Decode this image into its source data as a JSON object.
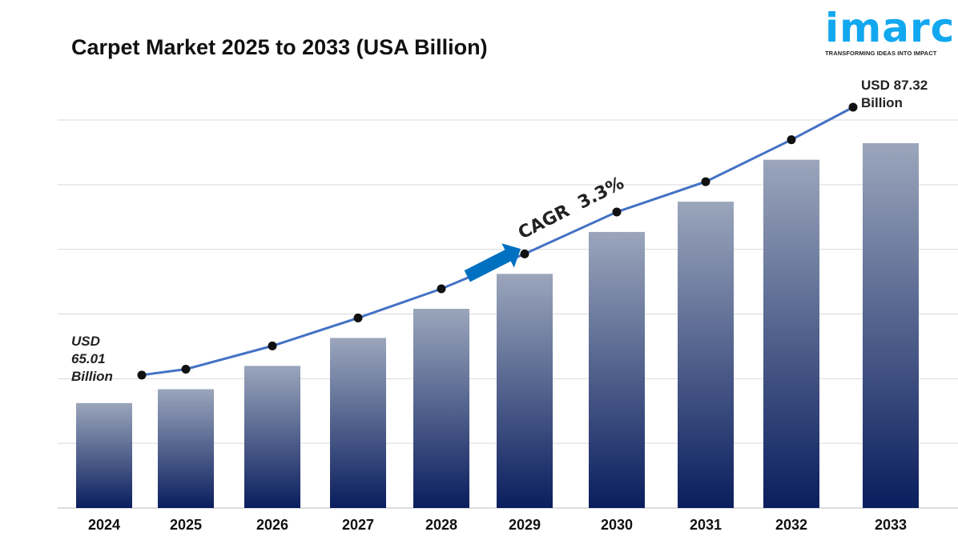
{
  "chart_data": {
    "type": "bar",
    "title": "Carpet Market 2025 to 2033 (USA Billion)",
    "categories": [
      "2024",
      "2025",
      "2026",
      "2027",
      "2028",
      "2029",
      "2030",
      "2031",
      "2032",
      "2033"
    ],
    "values": [
      65.01,
      66.2,
      68.2,
      70.6,
      73.1,
      76.1,
      79.7,
      82.3,
      85.9,
      87.32
    ],
    "ylim": [
      56,
      90
    ],
    "grid": true,
    "overlay_line": true,
    "annotations": {
      "start": [
        "USD",
        "65.01",
        "Billion"
      ],
      "end": [
        "USD 87.32",
        "Billion"
      ],
      "cagr": "CAGR  3.3%"
    },
    "colors": {
      "bar_top": "#9ba6bc",
      "bar_bottom": "#0a1e5e",
      "line": "#4472c4",
      "arrow": "#0070c0",
      "logo": "#12a8f0"
    }
  },
  "logo": {
    "word": "imarc",
    "tagline": "TRANSFORMING IDEAS INTO IMPACT"
  }
}
